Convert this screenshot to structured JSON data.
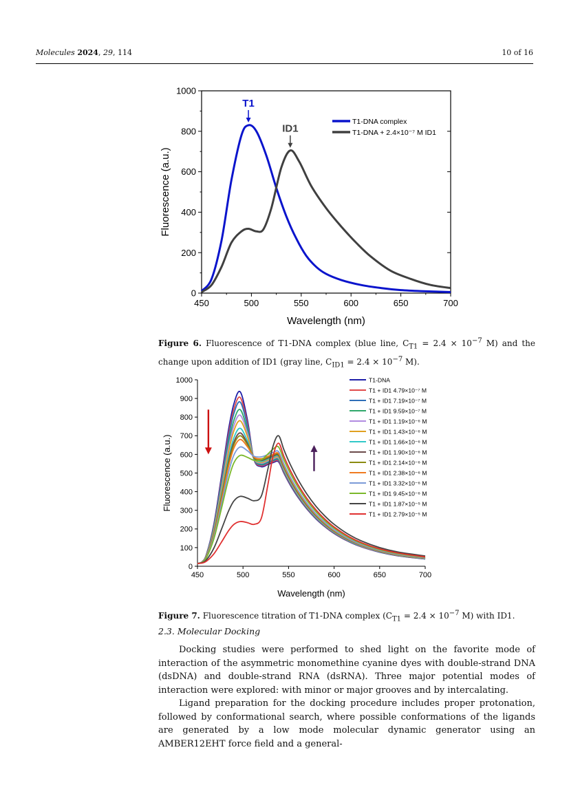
{
  "header": {
    "journal": "Molecules",
    "year": "2024",
    "volume": "29",
    "article": "114",
    "page": "10 of 16"
  },
  "figure6": {
    "chart_data": {
      "type": "line",
      "xlabel": "Wavelength (nm)",
      "ylabel": "Fluorescence (a.u.)",
      "xlim": [
        450,
        700
      ],
      "ylim": [
        0,
        1000
      ],
      "xticks": [
        450,
        500,
        550,
        600,
        650,
        700
      ],
      "yticks": [
        0,
        200,
        400,
        600,
        800,
        1000
      ],
      "legend_position": "top-right",
      "annotations": [
        {
          "label": "T1",
          "x": 497,
          "y": 830,
          "color": "#0a14cc"
        },
        {
          "label": "ID1",
          "x": 539,
          "y": 705,
          "color": "#404040"
        }
      ],
      "series": [
        {
          "name": "T1-DNA complex",
          "color": "#0a14cc",
          "x": [
            450,
            460,
            470,
            480,
            490,
            497,
            505,
            515,
            525,
            535,
            545,
            555,
            565,
            575,
            590,
            610,
            630,
            650,
            670,
            700
          ],
          "y": [
            10,
            70,
            260,
            560,
            780,
            830,
            800,
            680,
            520,
            380,
            270,
            185,
            130,
            95,
            65,
            40,
            25,
            15,
            10,
            5
          ]
        },
        {
          "name": "T1-DNA + 2.4×10⁻⁷ M ID1",
          "color": "#404040",
          "x": [
            450,
            460,
            470,
            480,
            490,
            497,
            505,
            512,
            520,
            530,
            539,
            548,
            560,
            575,
            590,
            605,
            620,
            640,
            660,
            680,
            700
          ],
          "y": [
            5,
            40,
            130,
            250,
            305,
            318,
            305,
            315,
            420,
            620,
            705,
            650,
            530,
            420,
            330,
            250,
            180,
            110,
            70,
            40,
            25
          ]
        }
      ]
    },
    "caption": {
      "label": "Figure 6.",
      "text": "Fluorescence of T1-DNA complex (blue line, C",
      "sub1": "T1",
      "text2": " = 2.4 × 10",
      "sup1": "−7",
      "text3": " M) and the change upon addition of ID1 (gray line, C",
      "sub2": "ID1",
      "text4": " = 2.4 × 10",
      "sup2": "−7",
      "text5": " M)."
    }
  },
  "figure7": {
    "chart_data": {
      "type": "line",
      "xlabel": "Wavelength (nm)",
      "ylabel": "Fluorescence (a.u.)",
      "xlim": [
        450,
        700
      ],
      "ylim": [
        0,
        1000
      ],
      "xticks": [
        450,
        500,
        550,
        600,
        650,
        700
      ],
      "yticks": [
        0,
        100,
        200,
        300,
        400,
        500,
        600,
        700,
        800,
        900,
        1000
      ],
      "legend_position": "top-right",
      "arrows": [
        {
          "direction": "down",
          "x": 462,
          "y_from": 840,
          "y_to": 600,
          "color": "#cc1111"
        },
        {
          "direction": "up",
          "x": 578,
          "y_from": 510,
          "y_to": 650,
          "color": "#4a1f5a"
        }
      ],
      "series": [
        {
          "name": "T1-DNA",
          "color": "#1e1ea8",
          "peak1": 935,
          "peak2": 560
        },
        {
          "name": "T1 + ID1 4.79×10⁻⁷ M",
          "color": "#e04a4a",
          "peak1": 905,
          "peak2": 565
        },
        {
          "name": "T1 + ID1 7.19×10⁻⁷ M",
          "color": "#2e6fb8",
          "peak1": 880,
          "peak2": 570
        },
        {
          "name": "T1 + ID1 9.59×10⁻⁷ M",
          "color": "#2fa86a",
          "peak1": 840,
          "peak2": 575
        },
        {
          "name": "T1 + ID1 1.19×10⁻⁶ M",
          "color": "#b08be0",
          "peak1": 810,
          "peak2": 580
        },
        {
          "name": "T1 + ID1 1.43×10⁻⁶ M",
          "color": "#e0a020",
          "peak1": 780,
          "peak2": 585
        },
        {
          "name": "T1 + ID1 1.66×10⁻⁶ M",
          "color": "#30c8c8",
          "peak1": 740,
          "peak2": 590
        },
        {
          "name": "T1 + ID1 1.90×10⁻⁶ M",
          "color": "#6b4a4a",
          "peak1": 715,
          "peak2": 595
        },
        {
          "name": "T1 + ID1 2.14×10⁻⁶ M",
          "color": "#8a8a10",
          "peak1": 700,
          "peak2": 600
        },
        {
          "name": "T1 + ID1 2.38×10⁻⁶ M",
          "color": "#f07a20",
          "peak1": 680,
          "peak2": 605
        },
        {
          "name": "T1 + ID1 3.32×10⁻⁶ M",
          "color": "#7a9ad8",
          "peak1": 640,
          "peak2": 615
        },
        {
          "name": "T1 + ID1 9.45×10⁻⁶ M",
          "color": "#7ab82a",
          "peak1": 595,
          "peak2": 640
        },
        {
          "name": "T1 + ID1 1.87×10⁻⁵ M",
          "color": "#444444",
          "peak1": 375,
          "peak2": 700
        },
        {
          "name": "T1 + ID1 2.79×10⁻⁵ M",
          "color": "#e03030",
          "peak1": 240,
          "peak2": 660
        }
      ]
    },
    "caption": {
      "label": "Figure 7.",
      "text": "Fluorescence titration of T1-DNA complex (C",
      "sub": "T1",
      "text2": " = 2.4 × 10",
      "sup": "−7",
      "text3": " M) with ID1."
    }
  },
  "section": {
    "title": "2.3. Molecular Docking"
  },
  "paragraphs": [
    "Docking studies were performed to shed light on the favorite mode of interaction of the asymmetric monomethine cyanine dyes with double-strand DNA (dsDNA) and double-strand RNA (dsRNA). Three major potential modes of interaction were explored: with minor or major grooves and by intercalating.",
    "Ligand preparation for the docking procedure includes proper protonation, followed by conformational search, where possible conformations of the ligands are generated by a low mode molecular dynamic generator using an AMBER12EHT force field and a general-"
  ]
}
